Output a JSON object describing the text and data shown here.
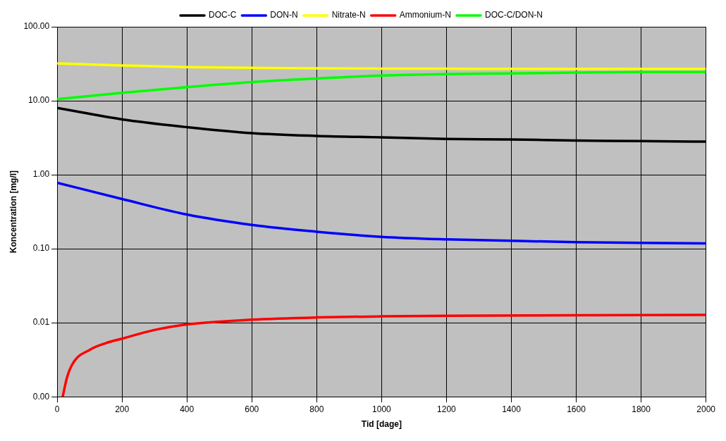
{
  "chart_data": {
    "type": "line",
    "xlabel": "Tid [dage]",
    "ylabel": "Koncentration [mg/l]",
    "x": [
      0,
      200,
      400,
      600,
      800,
      1000,
      1200,
      1400,
      1600,
      1800,
      2000
    ],
    "series": [
      {
        "name": "DOC-C",
        "color": "#000000",
        "values": [
          8.0,
          5.6,
          4.4,
          3.65,
          3.35,
          3.2,
          3.05,
          3.0,
          2.9,
          2.85,
          2.8
        ]
      },
      {
        "name": "DON-N",
        "color": "#0000ff",
        "values": [
          0.78,
          0.47,
          0.29,
          0.21,
          0.17,
          0.145,
          0.134,
          0.128,
          0.123,
          0.12,
          0.118
        ]
      },
      {
        "name": "Nitrate-N",
        "color": "#ffff00",
        "values": [
          32,
          30,
          28.5,
          27.9,
          27.4,
          27.2,
          27.1,
          27,
          27,
          27,
          27
        ]
      },
      {
        "name": "Ammonium-N",
        "color": "#ff0000",
        "x": [
          17,
          30,
          50,
          100,
          150,
          200,
          300,
          400,
          600,
          800,
          1000,
          1200,
          1600,
          2000
        ],
        "values": [
          0.001,
          0.0018,
          0.0029,
          0.0043,
          0.0053,
          0.0061,
          0.008,
          0.0095,
          0.011,
          0.0118,
          0.0122,
          0.0124,
          0.0126,
          0.0128
        ]
      },
      {
        "name": "DOC-C/DON-N",
        "color": "#00ff00",
        "values": [
          10.5,
          12.8,
          15.3,
          17.9,
          20,
          21.9,
          22.9,
          23.4,
          24,
          24.5,
          24.5
        ]
      }
    ],
    "log": "y",
    "xlim": [
      0,
      2000
    ],
    "xticks": [
      0,
      200,
      400,
      600,
      800,
      1000,
      1200,
      1400,
      1600,
      1800,
      2000
    ],
    "ylim": [
      0.001,
      100
    ],
    "yticks": [
      {
        "value": 0.001,
        "label": "0.00"
      },
      {
        "value": 0.01,
        "label": "0.01"
      },
      {
        "value": 0.1,
        "label": "0.10"
      },
      {
        "value": 1,
        "label": "1.00"
      },
      {
        "value": 10,
        "label": "10.00"
      },
      {
        "value": 100,
        "label": "100.00"
      }
    ],
    "grid": true,
    "legend": "top",
    "marker": "none",
    "line_style": "solid"
  }
}
